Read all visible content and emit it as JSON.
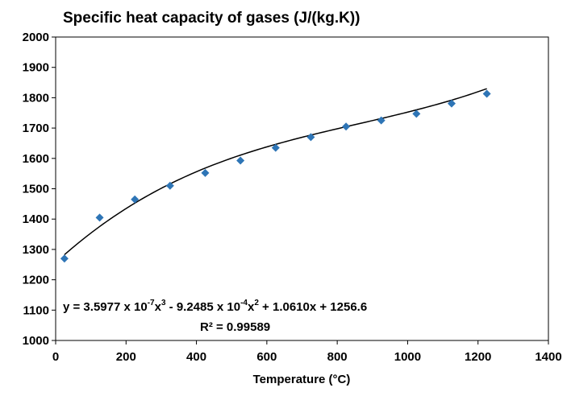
{
  "chart_data": {
    "type": "scatter",
    "title": "Specific heat capacity of gases (J/(kg.K))",
    "xlabel": "Temperature (°C)",
    "ylabel": "",
    "xlim": [
      0,
      1400
    ],
    "ylim": [
      1000,
      2000
    ],
    "xticks": [
      0,
      200,
      400,
      600,
      800,
      1000,
      1200,
      1400
    ],
    "yticks": [
      1000,
      1100,
      1200,
      1300,
      1400,
      1500,
      1600,
      1700,
      1800,
      1900,
      2000
    ],
    "grid": false,
    "legend": "none",
    "series": [
      {
        "x": [
          25,
          125,
          225,
          325,
          425,
          525,
          625,
          725,
          825,
          925,
          1025,
          1125,
          1225
        ],
        "y": [
          1270,
          1405,
          1465,
          1510,
          1552,
          1593,
          1635,
          1670,
          1705,
          1725,
          1747,
          1781,
          1813
        ],
        "marker": "diamond",
        "color": "#2e75b6"
      }
    ],
    "trendline": {
      "type": "polynomial",
      "order": 3,
      "coefficients": [
        3.5977e-07,
        -0.00092485,
        1.061,
        1256.6
      ],
      "x_range": [
        25,
        1225
      ],
      "color": "#000000",
      "equation_label": {
        "eq_prefix": "y = 3.5977 x 10",
        "exp1": "-7",
        "mid1": "x",
        "exp2": "3",
        "mid2": " - 9.2485 x 10",
        "exp3": "-4",
        "mid3": "x",
        "exp4": "2",
        "suffix": " + 1.0610x + 1256.6",
        "r2": "R² = 0.99589"
      }
    }
  }
}
